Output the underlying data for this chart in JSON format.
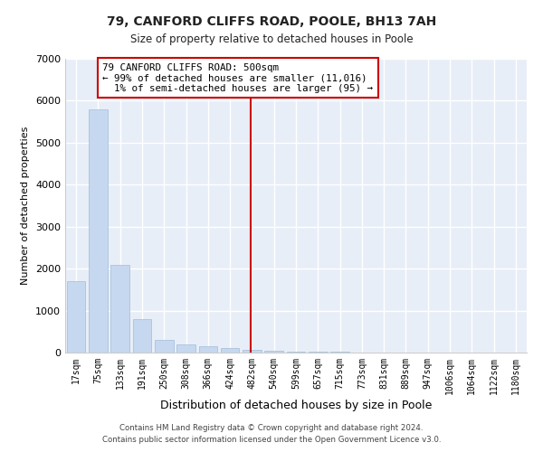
{
  "title1": "79, CANFORD CLIFFS ROAD, POOLE, BH13 7AH",
  "title2": "Size of property relative to detached houses in Poole",
  "xlabel": "Distribution of detached houses by size in Poole",
  "ylabel": "Number of detached properties",
  "bar_color": "#c5d8f0",
  "bar_edge_color": "#a0bcd8",
  "bg_color": "#e8eef7",
  "grid_color": "#ffffff",
  "vline_color": "#cc0000",
  "vline_index": 8,
  "annotation_line1": "79 CANFORD CLIFFS ROAD: 500sqm",
  "annotation_line2": "← 99% of detached houses are smaller (11,016)",
  "annotation_line3": "  1% of semi-detached houses are larger (95) →",
  "annotation_box_color": "#ffffff",
  "annotation_box_edge": "#cc0000",
  "categories": [
    "17sqm",
    "75sqm",
    "133sqm",
    "191sqm",
    "250sqm",
    "308sqm",
    "366sqm",
    "424sqm",
    "482sqm",
    "540sqm",
    "599sqm",
    "657sqm",
    "715sqm",
    "773sqm",
    "831sqm",
    "889sqm",
    "947sqm",
    "1006sqm",
    "1064sqm",
    "1122sqm",
    "1180sqm"
  ],
  "values": [
    1700,
    5800,
    2100,
    800,
    300,
    200,
    150,
    100,
    60,
    50,
    30,
    20,
    15,
    10,
    8,
    5,
    4,
    3,
    2,
    2,
    1
  ],
  "ylim": [
    0,
    7000
  ],
  "yticks": [
    0,
    1000,
    2000,
    3000,
    4000,
    5000,
    6000,
    7000
  ],
  "footer1": "Contains HM Land Registry data © Crown copyright and database right 2024.",
  "footer2": "Contains public sector information licensed under the Open Government Licence v3.0."
}
